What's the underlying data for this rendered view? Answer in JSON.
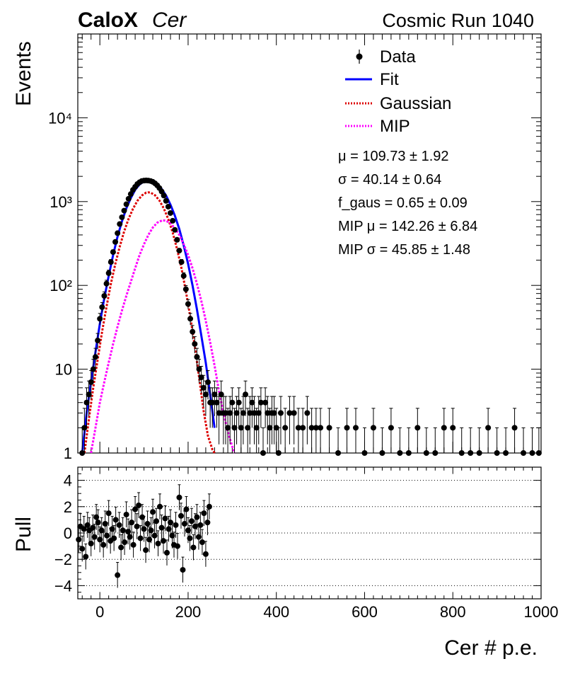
{
  "header": {
    "experiment_bold": "CaloX",
    "experiment_italic": "Cer",
    "run_label": "Cosmic Run 1040"
  },
  "legend": {
    "entries": [
      {
        "label": "Data",
        "style": "marker",
        "color": "#000000"
      },
      {
        "label": "Fit",
        "style": "solid",
        "color": "#0000ff"
      },
      {
        "label": "Gaussian",
        "style": "dotted",
        "color": "#dd0000"
      },
      {
        "label": "MIP",
        "style": "dotted",
        "color": "#ff00ff"
      }
    ]
  },
  "fit_params": [
    "μ = 109.73 ± 1.92",
    "σ = 40.14 ± 0.64",
    "f_gaus = 0.65 ± 0.09",
    "MIP μ = 142.26 ± 6.84",
    "MIP σ = 45.85 ± 1.48"
  ],
  "chart_data": [
    {
      "type": "scatter",
      "panel": "main",
      "ylabel": "Events",
      "yscale": "log",
      "xlim": [
        -50,
        1000
      ],
      "ylim": [
        1,
        100000
      ],
      "yticks": [
        {
          "value": 1,
          "label": "1"
        },
        {
          "value": 10,
          "label": "10"
        },
        {
          "value": 100,
          "label": "10²"
        },
        {
          "value": 1000,
          "label": "10³"
        },
        {
          "value": 10000,
          "label": "10⁴"
        }
      ],
      "series": [
        {
          "name": "Data",
          "color": "#000000",
          "x": [
            -40,
            -35,
            -30,
            -25,
            -20,
            -15,
            -10,
            -5,
            0,
            5,
            10,
            15,
            20,
            25,
            30,
            35,
            40,
            45,
            50,
            55,
            60,
            65,
            70,
            75,
            80,
            85,
            90,
            95,
            100,
            105,
            110,
            115,
            120,
            125,
            130,
            135,
            140,
            145,
            150,
            155,
            160,
            165,
            170,
            175,
            180,
            185,
            190,
            195,
            200,
            205,
            210,
            215,
            220,
            225,
            230,
            235,
            240,
            245,
            250,
            255,
            260,
            265,
            270,
            275,
            280,
            285,
            290,
            295,
            300,
            305,
            310,
            315,
            320,
            325,
            330,
            335,
            340,
            345,
            350,
            355,
            360,
            365,
            370,
            375,
            380,
            385,
            390,
            395,
            400,
            405,
            410,
            420,
            430,
            440,
            450,
            460,
            470,
            480,
            490,
            500,
            520,
            540,
            560,
            580,
            600,
            620,
            640,
            660,
            680,
            700,
            720,
            740,
            760,
            780,
            800,
            820,
            840,
            860,
            880,
            900,
            920,
            940,
            960,
            980,
            995
          ],
          "y": [
            1,
            2,
            4,
            5,
            7,
            10,
            14,
            22,
            40,
            55,
            75,
            105,
            140,
            190,
            250,
            330,
            420,
            540,
            650,
            780,
            930,
            1080,
            1230,
            1380,
            1500,
            1620,
            1700,
            1760,
            1780,
            1790,
            1780,
            1760,
            1720,
            1650,
            1560,
            1450,
            1320,
            1180,
            1020,
            870,
            730,
            590,
            460,
            350,
            260,
            190,
            130,
            90,
            60,
            40,
            28,
            20,
            14,
            10,
            8,
            6,
            5,
            7,
            4,
            4,
            5,
            4,
            3,
            5,
            3,
            3,
            2,
            3,
            4,
            2,
            3,
            4,
            2,
            3,
            5,
            2,
            3,
            4,
            3,
            2,
            3,
            4,
            1,
            4,
            3,
            2,
            3,
            3,
            2,
            1,
            3,
            2,
            3,
            3,
            2,
            2,
            3,
            2,
            2,
            2,
            2,
            1,
            2,
            2,
            1,
            2,
            1,
            2,
            1,
            1,
            2,
            1,
            1,
            2,
            2,
            1,
            1,
            1,
            2,
            1,
            1,
            2,
            1,
            1,
            1
          ]
        },
        {
          "name": "Fit",
          "color": "#0000ff",
          "x": [
            -40,
            -30,
            -20,
            -10,
            0,
            10,
            20,
            30,
            40,
            50,
            60,
            70,
            80,
            90,
            100,
            110,
            120,
            130,
            140,
            150,
            160,
            170,
            180,
            190,
            200,
            210,
            220,
            230,
            240,
            250,
            260
          ],
          "y": [
            1,
            3,
            7,
            16,
            35,
            70,
            130,
            230,
            380,
            580,
            830,
            1100,
            1380,
            1600,
            1740,
            1780,
            1740,
            1620,
            1420,
            1180,
            920,
            680,
            470,
            300,
            180,
            100,
            52,
            25,
            12,
            5,
            2
          ]
        },
        {
          "name": "Gaussian",
          "color": "#dd0000",
          "x": [
            -35,
            -25,
            -15,
            -5,
            5,
            15,
            25,
            35,
            45,
            55,
            65,
            75,
            85,
            95,
            105,
            110,
            115,
            125,
            135,
            145,
            155,
            165,
            175,
            185,
            195,
            205,
            215,
            225,
            235,
            245,
            255,
            260
          ],
          "y": [
            1,
            2.5,
            6,
            13,
            28,
            55,
            105,
            180,
            290,
            440,
            620,
            820,
            1020,
            1180,
            1280,
            1290,
            1280,
            1190,
            1030,
            830,
            620,
            430,
            270,
            160,
            85,
            42,
            19,
            8,
            3.2,
            1.6,
            1.1,
            1
          ]
        },
        {
          "name": "MIP",
          "color": "#ff00ff",
          "x": [
            -20,
            -10,
            0,
            10,
            20,
            30,
            40,
            50,
            60,
            70,
            80,
            90,
            100,
            110,
            120,
            130,
            142,
            150,
            160,
            170,
            180,
            190,
            200,
            210,
            220,
            230,
            240,
            250,
            260,
            270,
            280,
            290,
            300,
            305
          ],
          "y": [
            1,
            2,
            4,
            7,
            12,
            20,
            32,
            50,
            75,
            110,
            160,
            230,
            310,
            400,
            490,
            560,
            600,
            590,
            550,
            480,
            400,
            310,
            230,
            160,
            105,
            65,
            38,
            21,
            11,
            5.5,
            3,
            1.8,
            1.2,
            1
          ]
        }
      ]
    },
    {
      "type": "scatter",
      "panel": "pull",
      "xlabel": "Cer # p.e.",
      "ylabel": "Pull",
      "xlim": [
        -50,
        1000
      ],
      "ylim": [
        -5,
        5
      ],
      "xticks": [
        0,
        200,
        400,
        600,
        800,
        1000
      ],
      "yticks": [
        -4,
        -2,
        0,
        2,
        4
      ],
      "gridlines_y": [
        -4,
        -2,
        0,
        2,
        4
      ],
      "series": [
        {
          "name": "Pull",
          "color": "#000000",
          "x": [
            -48,
            -44,
            -40,
            -36,
            -32,
            -28,
            -24,
            -20,
            -16,
            -12,
            -8,
            -4,
            0,
            4,
            8,
            12,
            16,
            20,
            24,
            28,
            32,
            36,
            40,
            44,
            48,
            52,
            56,
            60,
            64,
            68,
            72,
            76,
            80,
            84,
            88,
            92,
            96,
            100,
            104,
            108,
            112,
            116,
            120,
            124,
            128,
            132,
            136,
            140,
            144,
            148,
            152,
            156,
            160,
            164,
            168,
            172,
            176,
            180,
            184,
            188,
            192,
            196,
            200,
            204,
            208,
            212,
            216,
            220,
            224,
            228,
            232,
            236,
            240,
            244,
            248
          ],
          "y": [
            -0.5,
            0.5,
            -1.2,
            0.3,
            -1.8,
            0.6,
            0.2,
            -0.8,
            0.4,
            -0.3,
            1.2,
            0.8,
            -0.5,
            0.2,
            -0.9,
            0.7,
            -0.2,
            1.5,
            -0.6,
            0.3,
            -0.4,
            1.0,
            -3.2,
            0.6,
            -1.1,
            0.2,
            -0.7,
            1.4,
            0.1,
            -0.3,
            0.8,
            -0.9,
            1.8,
            0.5,
            2.1,
            -0.4,
            1.2,
            0.3,
            -1.3,
            0.7,
            -0.5,
            0.2,
            1.6,
            -0.2,
            0.9,
            -0.8,
            2.0,
            0.4,
            -0.6,
            1.1,
            -1.5,
            0.3,
            0.8,
            -0.2,
            -0.9,
            0.6,
            -1.0,
            2.7,
            1.3,
            -2.8,
            0.7,
            1.8,
            0.2,
            -0.4,
            0.9,
            -1.1,
            0.5,
            1.2,
            -0.3,
            0.6,
            -0.7,
            1.5,
            -1.6,
            0.8,
            2.0
          ]
        }
      ]
    }
  ]
}
